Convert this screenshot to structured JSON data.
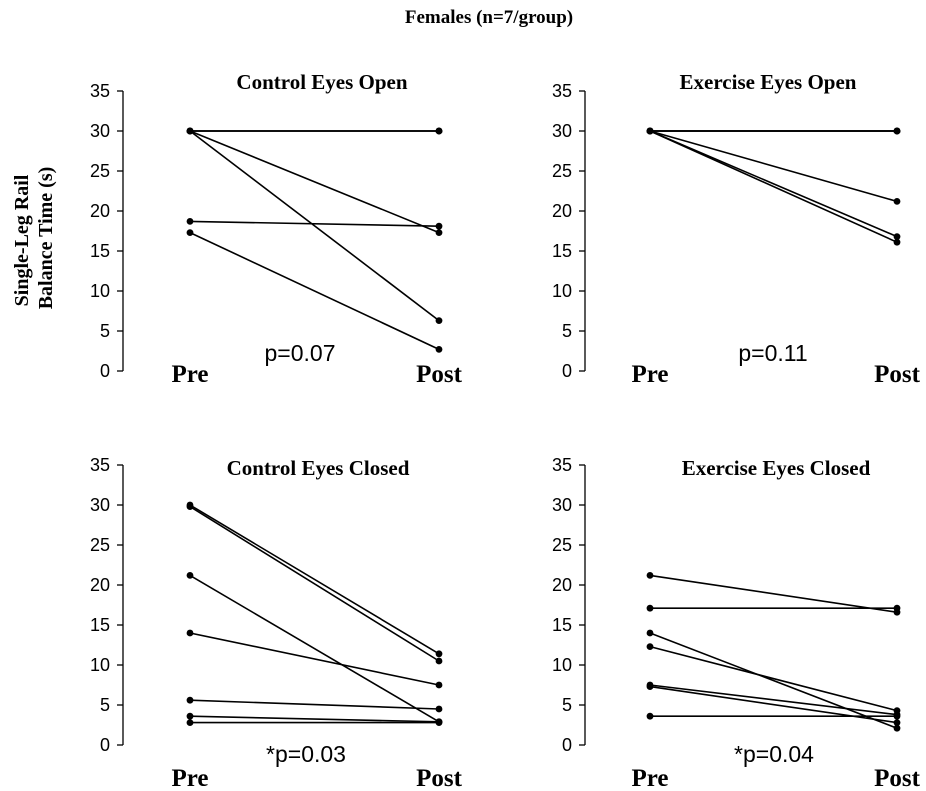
{
  "figure": {
    "title": "Females (n=7/group)",
    "ylabel_lines": [
      "Single-Leg Rail",
      "Balance Time (s)"
    ]
  },
  "chart_data": [
    {
      "type": "line",
      "title": "Control Eyes Open",
      "categories": [
        "Pre",
        "Post"
      ],
      "ylim": [
        0,
        35
      ],
      "yticks": [
        0,
        5,
        10,
        15,
        20,
        25,
        30,
        35
      ],
      "annotation": "p=0.07",
      "series": [
        {
          "values": [
            30,
            30
          ]
        },
        {
          "values": [
            30,
            30
          ]
        },
        {
          "values": [
            30,
            30
          ]
        },
        {
          "values": [
            30,
            17.3
          ]
        },
        {
          "values": [
            30,
            6.3
          ]
        },
        {
          "values": [
            18.7,
            18.1
          ]
        },
        {
          "values": [
            17.3,
            2.7
          ]
        }
      ]
    },
    {
      "type": "line",
      "title": "Exercise Eyes Open",
      "categories": [
        "Pre",
        "Post"
      ],
      "ylim": [
        0,
        35
      ],
      "yticks": [
        0,
        5,
        10,
        15,
        20,
        25,
        30,
        35
      ],
      "annotation": "p=0.11",
      "series": [
        {
          "values": [
            30,
            30
          ]
        },
        {
          "values": [
            30,
            30
          ]
        },
        {
          "values": [
            30,
            30
          ]
        },
        {
          "values": [
            30,
            30
          ]
        },
        {
          "values": [
            30,
            21.2
          ]
        },
        {
          "values": [
            30,
            16.8
          ]
        },
        {
          "values": [
            30,
            16.1
          ]
        }
      ]
    },
    {
      "type": "line",
      "title": "Control Eyes Closed",
      "categories": [
        "Pre",
        "Post"
      ],
      "ylim": [
        0,
        35
      ],
      "yticks": [
        0,
        5,
        10,
        15,
        20,
        25,
        30,
        35
      ],
      "annotation": "*p=0.03",
      "series": [
        {
          "values": [
            30,
            11.4
          ]
        },
        {
          "values": [
            29.8,
            10.5
          ]
        },
        {
          "values": [
            21.2,
            2.9
          ]
        },
        {
          "values": [
            14,
            7.5
          ]
        },
        {
          "values": [
            5.6,
            4.5
          ]
        },
        {
          "values": [
            3.6,
            2.9
          ]
        },
        {
          "values": [
            2.8,
            2.8
          ]
        }
      ]
    },
    {
      "type": "line",
      "title": "Exercise Eyes Closed",
      "categories": [
        "Pre",
        "Post"
      ],
      "ylim": [
        0,
        35
      ],
      "yticks": [
        0,
        5,
        10,
        15,
        20,
        25,
        30,
        35
      ],
      "annotation": "*p=0.04",
      "series": [
        {
          "values": [
            21.2,
            16.6
          ]
        },
        {
          "values": [
            17.1,
            17.1
          ]
        },
        {
          "values": [
            14,
            2.1
          ]
        },
        {
          "values": [
            12.3,
            4.3
          ]
        },
        {
          "values": [
            7.5,
            3.8
          ]
        },
        {
          "values": [
            7.3,
            2.8
          ]
        },
        {
          "values": [
            3.6,
            3.6
          ]
        }
      ]
    }
  ]
}
